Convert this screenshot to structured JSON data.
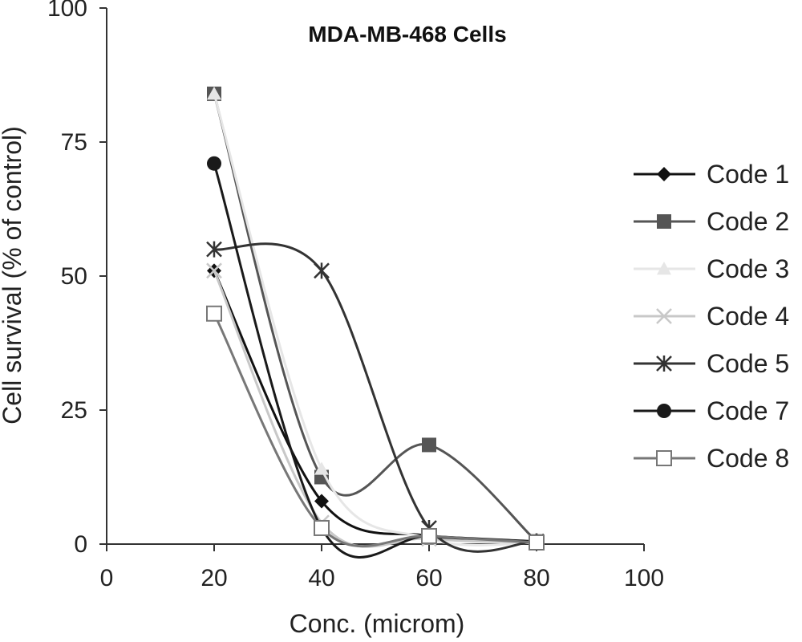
{
  "chart_data": {
    "type": "line",
    "title": "MDA-MB-468 Cells",
    "xlabel": "Conc. (microm)",
    "ylabel": "Cell survival (% of control)",
    "xlim": [
      0,
      100
    ],
    "ylim": [
      0,
      100
    ],
    "x_ticks": [
      0,
      20,
      40,
      60,
      80,
      100
    ],
    "y_ticks": [
      0,
      25,
      50,
      75,
      100
    ],
    "x_tick_labels": [
      "0",
      "20",
      "40",
      "60",
      "80",
      "100"
    ],
    "y_tick_labels": [
      "0",
      "25",
      "50",
      "75",
      "100"
    ],
    "grid": false,
    "legend_position": "right",
    "x": [
      20,
      40,
      60,
      80
    ],
    "series": [
      {
        "name": "Code 1",
        "values": [
          51,
          8,
          1.5,
          0.5
        ],
        "color": "#111111",
        "marker": "diamond"
      },
      {
        "name": "Code 2",
        "values": [
          84,
          12.5,
          18.5,
          0.5
        ],
        "color": "#555555",
        "marker": "square"
      },
      {
        "name": "Code 3",
        "values": [
          84,
          14,
          1,
          0.3
        ],
        "color": "#e6e6e6",
        "marker": "triangle"
      },
      {
        "name": "Code 4",
        "values": [
          51,
          4,
          1,
          0.3
        ],
        "color": "#c8c8c8",
        "marker": "x"
      },
      {
        "name": "Code 5",
        "values": [
          55,
          51,
          3,
          0.5
        ],
        "color": "#333333",
        "marker": "star"
      },
      {
        "name": "Code 7",
        "values": [
          71,
          3,
          1.5,
          0.5
        ],
        "color": "#1a1a1a",
        "marker": "circle"
      },
      {
        "name": "Code 8",
        "values": [
          43,
          3,
          1.5,
          0.3
        ],
        "color": "#777777",
        "marker": "open-square"
      }
    ]
  }
}
